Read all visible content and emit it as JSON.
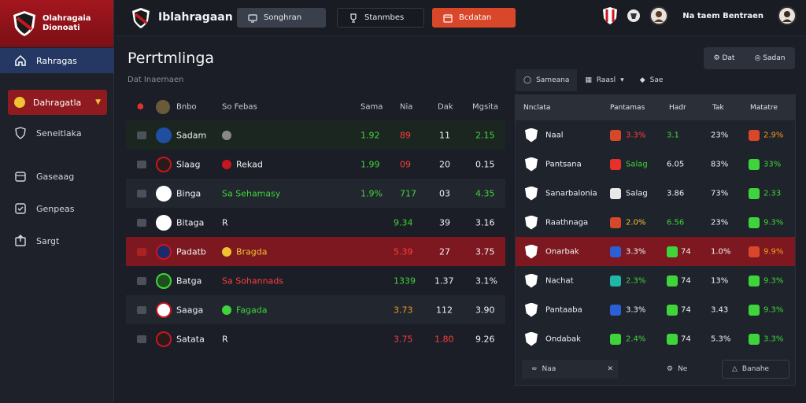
{
  "app": {
    "brand_line1": "Olahragaia",
    "brand_line2": "Dionoati",
    "title": "Iblahragaan"
  },
  "toolbar": {
    "btn1": "Songhran",
    "btn2": "Stanmbes",
    "btn3": "Bcdatan",
    "user_name": "Na taem Bentraen"
  },
  "sidebar": {
    "items": [
      {
        "label": "Rahragas"
      },
      {
        "label": "Dahragatla"
      },
      {
        "label": "Seneitlaka"
      },
      {
        "label": "Gaseaag"
      },
      {
        "label": "Genpeas"
      },
      {
        "label": "Sargt"
      }
    ]
  },
  "main": {
    "title": "Perrtmlinga",
    "subtitle": "Dat Inaernaen",
    "columns": [
      "Bnbo",
      "So Febas",
      "Sama",
      "Nia",
      "Dak",
      "Mgsita"
    ],
    "rows": [
      {
        "team": "Sadam",
        "code": "",
        "v1": "1.92",
        "v2": "89",
        "v3": "11",
        "v4": "2.15"
      },
      {
        "team": "Slaag",
        "code": "Rekad",
        "v1": "1.99",
        "v2": "09",
        "v3": "20",
        "v4": "0.15"
      },
      {
        "team": "Binga",
        "code": "Sa Sehamasy",
        "v1": "1.9%",
        "v2": "717",
        "v3": "03",
        "v4": "4.35"
      },
      {
        "team": "Bitaga",
        "code": "R",
        "v1": "",
        "v2": "9.34",
        "v3": "39",
        "v4": "3.16"
      },
      {
        "team": "Padatb",
        "code": "Bragda",
        "v1": "",
        "v2": "5.39",
        "v3": "27",
        "v4": "3.75"
      },
      {
        "team": "Batga",
        "code": "Sa Sohannads",
        "v1": "",
        "v2": "1339",
        "v3": "1.37",
        "v4": "3.1%"
      },
      {
        "team": "Saaga",
        "code": "Fagada",
        "v1": "",
        "v2": "3.73",
        "v3": "112",
        "v4": "3.90"
      },
      {
        "team": "Satata",
        "code": "R",
        "v1": "",
        "v2": "3.75",
        "v3": "1.80",
        "v4": "9.26"
      }
    ]
  },
  "panel": {
    "actions": [
      "Dat",
      "Sadan"
    ],
    "tabs": [
      "Sameana",
      "Raasl",
      "Sae"
    ],
    "columns": [
      "Nnclata",
      "Pantamas",
      "Hadr",
      "Tak",
      "Matatre"
    ],
    "rows": [
      {
        "team": "Naal",
        "pct": "3.3%",
        "val": "3.1",
        "tak": "23%",
        "mat": "2.9%"
      },
      {
        "team": "Pantsana",
        "pct": "Salag",
        "val": "6.05",
        "tak": "83%",
        "mat": "33%"
      },
      {
        "team": "Sanarbalonia",
        "pct": "Salag",
        "val": "3.86",
        "tak": "73%",
        "mat": "2.33"
      },
      {
        "team": "Raathnaga",
        "pct": "2.0%",
        "val": "6.56",
        "tak": "23%",
        "mat": "9.3%"
      },
      {
        "team": "Onarbak",
        "pct": "3.3%",
        "val": "74",
        "tak": "1.0%",
        "mat": "9.9%"
      },
      {
        "team": "Nachat",
        "pct": "2.3%",
        "val": "74",
        "tak": "13%",
        "mat": "9.3%"
      },
      {
        "team": "Pantaaba",
        "pct": "3.3%",
        "val": "74",
        "tak": "3.43",
        "mat": "9.3%"
      },
      {
        "team": "Ondabak",
        "pct": "2.4%",
        "val": "74",
        "tak": "5.3%",
        "mat": "3.3%"
      }
    ],
    "foot": [
      "Naa",
      "Ne",
      "Banahe"
    ]
  },
  "colors": {
    "accent_red": "#a3161e",
    "accent_orange": "#d8472a",
    "positive": "#3fd43b",
    "negative": "#ff3d3d"
  }
}
